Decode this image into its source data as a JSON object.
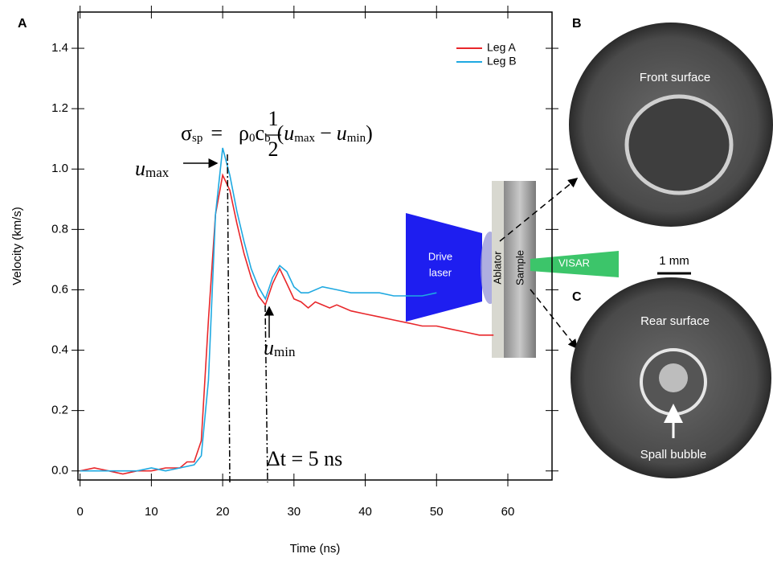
{
  "chart_data": {
    "type": "line",
    "x_label": "Time (ns)",
    "y_label": "Velocity (km/s)",
    "xlim": [
      -0.3,
      66.2
    ],
    "ylim": [
      -0.03,
      1.52
    ],
    "xticks": [
      0,
      10,
      20,
      30,
      40,
      50,
      60
    ],
    "yticks": [
      {
        "value": 0,
        "label": "0.0"
      },
      0.2,
      0.4,
      0.6,
      0.8,
      {
        "value": 1,
        "label": "1.0"
      },
      1.2,
      1.4
    ],
    "legend": "top-right",
    "series": [
      {
        "name": "Leg A",
        "color": "#e8272b",
        "x": [
          0,
          2,
          4,
          6,
          8,
          10,
          12,
          14,
          15,
          16,
          17,
          18,
          19,
          20,
          21,
          22,
          23,
          24,
          25,
          26,
          27,
          28,
          29,
          30,
          31,
          32,
          33,
          34,
          35,
          36,
          38,
          40,
          42,
          44,
          46,
          48,
          50,
          52,
          54,
          56,
          58
        ],
        "values": [
          0,
          0.01,
          0,
          -0.01,
          0,
          0,
          0.01,
          0.01,
          0.03,
          0.03,
          0.1,
          0.5,
          0.85,
          0.98,
          0.93,
          0.82,
          0.72,
          0.64,
          0.58,
          0.55,
          0.62,
          0.67,
          0.62,
          0.57,
          0.56,
          0.54,
          0.56,
          0.55,
          0.54,
          0.55,
          0.53,
          0.52,
          0.51,
          0.5,
          0.49,
          0.48,
          0.48,
          0.47,
          0.46,
          0.45,
          0.45
        ]
      },
      {
        "name": "Leg B",
        "color": "#1fa9e1",
        "x": [
          0,
          2,
          4,
          6,
          8,
          10,
          12,
          14,
          16,
          17,
          18,
          19,
          20,
          21,
          22,
          23,
          24,
          25,
          26,
          27,
          28,
          29,
          30,
          31,
          32,
          34,
          36,
          38,
          40,
          42,
          44,
          46,
          48,
          50
        ],
        "values": [
          0,
          0,
          0,
          0,
          0,
          0.01,
          0,
          0.01,
          0.02,
          0.05,
          0.3,
          0.85,
          1.07,
          0.98,
          0.86,
          0.76,
          0.67,
          0.61,
          0.57,
          0.64,
          0.68,
          0.66,
          0.61,
          0.59,
          0.59,
          0.61,
          0.6,
          0.59,
          0.59,
          0.59,
          0.58,
          0.58,
          0.58,
          0.59
        ]
      }
    ],
    "annotations": {
      "u_max": "u",
      "u_max_sub": "max",
      "u_min": "u",
      "u_min_sub": "min",
      "delta_t": "Δt = 5 ns",
      "formula": {
        "sigma": "σ",
        "sigma_sub": "sp",
        "eq": "=",
        "num": "1",
        "den": "2",
        "rho": "ρ",
        "rho_sub": "0",
        "c": "c",
        "c_sub": "b",
        "open": "(",
        "u1": "u",
        "u1_sub": "max",
        "minus": "−",
        "u2": "u",
        "u2_sub": "min",
        "close": ")"
      }
    }
  },
  "panels": {
    "a": "A",
    "b": "B",
    "c": "C"
  },
  "schematic": {
    "drive_laser": [
      "Drive",
      "laser"
    ],
    "ablator": "Ablator",
    "sample": "Sample",
    "visar": "VISAR"
  },
  "images": {
    "front": "Front surface",
    "rear": "Rear surface",
    "spall": "Spall bubble",
    "scale": "1 mm"
  }
}
